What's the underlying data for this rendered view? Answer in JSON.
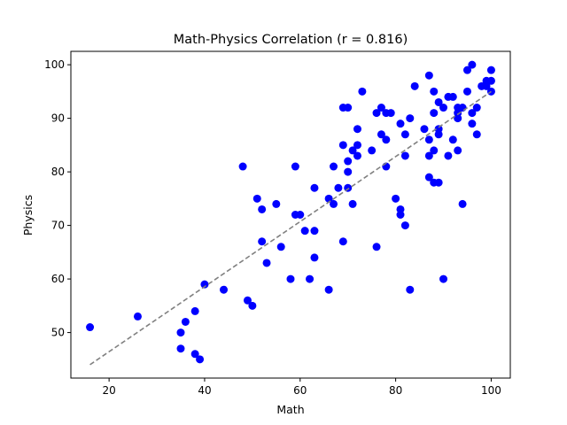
{
  "chart_data": {
    "type": "scatter",
    "title": "Math-Physics Correlation (r = 0.816)",
    "xlabel": "Math",
    "ylabel": "Physics",
    "xlim": [
      12,
      104
    ],
    "ylim": [
      41.5,
      102.5
    ],
    "xticks": [
      20,
      40,
      60,
      80,
      100
    ],
    "yticks": [
      50,
      60,
      70,
      80,
      90,
      100
    ],
    "grid": false,
    "point_color": "#0000ff",
    "trend_line": {
      "style": "dashed",
      "color": "#808080",
      "from": [
        16,
        44
      ],
      "to": [
        100,
        95
      ]
    },
    "series": [
      {
        "points": [
          [
            16,
            51
          ],
          [
            26,
            53
          ],
          [
            35,
            47
          ],
          [
            35,
            50
          ],
          [
            36,
            52
          ],
          [
            38,
            54
          ],
          [
            38,
            46
          ],
          [
            39,
            45
          ],
          [
            40,
            59
          ],
          [
            44,
            58
          ],
          [
            48,
            81
          ],
          [
            49,
            56
          ],
          [
            50,
            55
          ],
          [
            51,
            75
          ],
          [
            52,
            73
          ],
          [
            52,
            67
          ],
          [
            53,
            63
          ],
          [
            55,
            74
          ],
          [
            56,
            66
          ],
          [
            58,
            60
          ],
          [
            59,
            81
          ],
          [
            59,
            72
          ],
          [
            60,
            72
          ],
          [
            61,
            69
          ],
          [
            62,
            60
          ],
          [
            63,
            77
          ],
          [
            63,
            69
          ],
          [
            63,
            64
          ],
          [
            66,
            58
          ],
          [
            66,
            75
          ],
          [
            67,
            81
          ],
          [
            67,
            74
          ],
          [
            68,
            77
          ],
          [
            69,
            92
          ],
          [
            69,
            85
          ],
          [
            69,
            67
          ],
          [
            70,
            92
          ],
          [
            70,
            82
          ],
          [
            70,
            80
          ],
          [
            70,
            77
          ],
          [
            71,
            84
          ],
          [
            71,
            74
          ],
          [
            72,
            88
          ],
          [
            72,
            85
          ],
          [
            72,
            83
          ],
          [
            73,
            95
          ],
          [
            75,
            84
          ],
          [
            76,
            91
          ],
          [
            76,
            66
          ],
          [
            77,
            92
          ],
          [
            77,
            87
          ],
          [
            78,
            91
          ],
          [
            78,
            86
          ],
          [
            78,
            81
          ],
          [
            79,
            91
          ],
          [
            80,
            75
          ],
          [
            81,
            89
          ],
          [
            81,
            73
          ],
          [
            81,
            72
          ],
          [
            82,
            87
          ],
          [
            82,
            83
          ],
          [
            82,
            70
          ],
          [
            83,
            90
          ],
          [
            83,
            58
          ],
          [
            84,
            96
          ],
          [
            86,
            88
          ],
          [
            87,
            98
          ],
          [
            87,
            86
          ],
          [
            87,
            83
          ],
          [
            87,
            79
          ],
          [
            88,
            95
          ],
          [
            88,
            91
          ],
          [
            88,
            84
          ],
          [
            88,
            78
          ],
          [
            89,
            93
          ],
          [
            89,
            88
          ],
          [
            89,
            87
          ],
          [
            89,
            78
          ],
          [
            90,
            92
          ],
          [
            90,
            60
          ],
          [
            91,
            94
          ],
          [
            91,
            83
          ],
          [
            92,
            94
          ],
          [
            92,
            86
          ],
          [
            93,
            92
          ],
          [
            93,
            91
          ],
          [
            93,
            90
          ],
          [
            93,
            84
          ],
          [
            94,
            92
          ],
          [
            94,
            74
          ],
          [
            95,
            99
          ],
          [
            95,
            95
          ],
          [
            96,
            100
          ],
          [
            96,
            91
          ],
          [
            96,
            89
          ],
          [
            97,
            92
          ],
          [
            97,
            87
          ],
          [
            98,
            96
          ],
          [
            99,
            97
          ],
          [
            100,
            99
          ],
          [
            100,
            97
          ],
          [
            100,
            95
          ],
          [
            99,
            96
          ]
        ]
      }
    ]
  }
}
